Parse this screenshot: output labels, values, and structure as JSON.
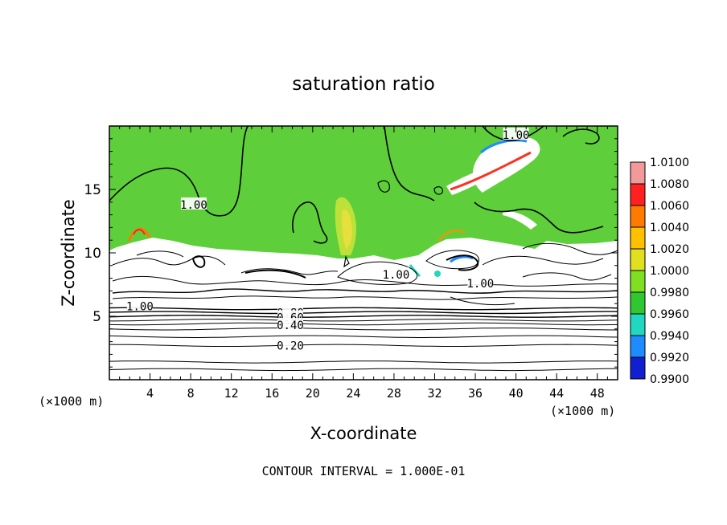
{
  "chart_data": {
    "type": "heatmap",
    "title": "saturation ratio",
    "xlabel": "X-coordinate",
    "ylabel": "Z-coordinate",
    "x_unit_left": "(×1000 m)",
    "x_unit_right": "(×1000 m)",
    "xlim": [
      0,
      50
    ],
    "ylim": [
      0,
      20
    ],
    "x_ticks": [
      4,
      8,
      12,
      16,
      20,
      24,
      28,
      32,
      36,
      40,
      44,
      48
    ],
    "y_ticks": [
      5,
      10,
      15
    ],
    "footer": "CONTOUR INTERVAL = 1.000E-01",
    "colorbar": {
      "levels": [
        "1.0100",
        "1.0080",
        "1.0060",
        "1.0040",
        "1.0020",
        "1.0000",
        "0.9980",
        "0.9960",
        "0.9940",
        "0.9920",
        "0.9900"
      ],
      "colors": [
        "#f29a9a",
        "#ff2020",
        "#ff7a00",
        "#ffc000",
        "#e0e020",
        "#7ee020",
        "#30c830",
        "#20d8c0",
        "#1e8cff",
        "#1020d0",
        "#400090"
      ]
    },
    "contour_labels": [
      {
        "text": "1.00",
        "x": 40,
        "z": 19.3
      },
      {
        "text": "1.00",
        "x": 8.3,
        "z": 13.8
      },
      {
        "text": "1.00",
        "x": 28.2,
        "z": 8.3
      },
      {
        "text": "1.00",
        "x": 36.5,
        "z": 7.6
      },
      {
        "text": "1.00",
        "x": 3,
        "z": 5.8
      },
      {
        "text": "0.80",
        "x": 17.8,
        "z": 5.3
      },
      {
        "text": "0.60",
        "x": 17.8,
        "z": 4.9
      },
      {
        "text": "0.40",
        "x": 17.8,
        "z": 4.3
      },
      {
        "text": "0.20",
        "x": 17.8,
        "z": 2.7
      }
    ],
    "horizontal_contours": [
      0.8,
      1.4,
      2.7,
      3.4,
      4.0,
      4.4,
      4.7,
      5.0,
      5.3,
      5.6
    ]
  }
}
